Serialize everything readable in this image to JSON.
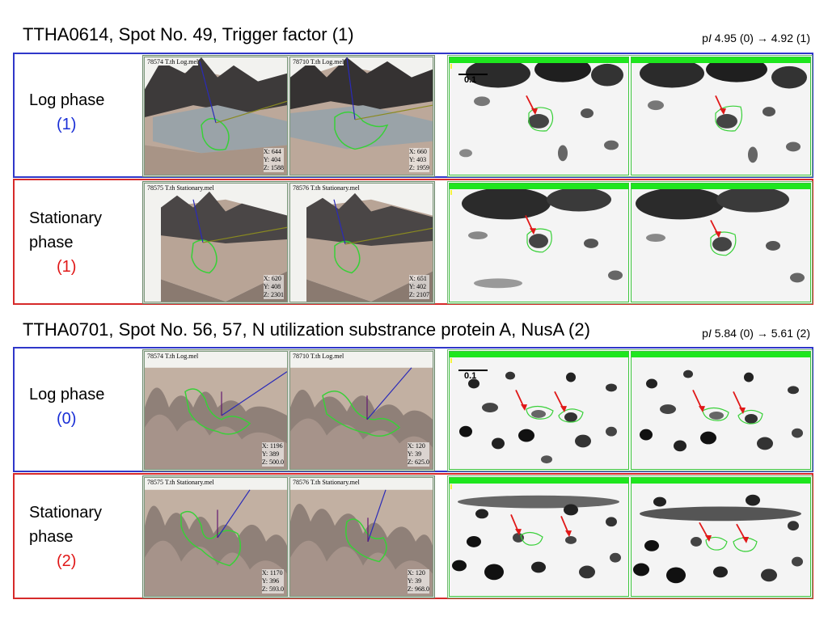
{
  "sections": [
    {
      "title": "TTHA0614, Spot No. 49, Trigger factor (1)",
      "pi_prefix": "p",
      "pi_italic": "I",
      "pi_text": " 4.95 (0) → 4.92 (1)",
      "log": {
        "label": "Log phase",
        "count": "(1)",
        "img_a": "78574 T.th Log.mel",
        "img_b": "78710 T.th Log.mel",
        "a_xyz": [
          "X: 644",
          "Y: 404",
          "Z: 1588"
        ],
        "b_xyz": [
          "X: 660",
          "Y: 403",
          "Z: 1959"
        ],
        "scale": "0.1"
      },
      "stat": {
        "label_1": "Stationary",
        "label_2": "phase",
        "count": "(1)",
        "img_a": "78575 T.th Stationary.mel",
        "img_b": "78576 T.th Stationary.mel",
        "a_xyz": [
          "X: 620",
          "Y: 408",
          "Z: 2301"
        ],
        "b_xyz": [
          "X: 651",
          "Y: 402",
          "Z: 2107"
        ]
      }
    },
    {
      "title": "TTHA0701, Spot No. 56, 57, N utilization substrance protein A, NusA (2)",
      "pi_prefix": "p",
      "pi_italic": "I",
      "pi_text": " 5.84 (0) → 5.61 (2)",
      "log": {
        "label": "Log phase",
        "count": "(0)",
        "img_a": "78574 T.th Log.mel",
        "img_b": "78710 T.th Log.mel",
        "a_xyz": [
          "X: 1196",
          "Y: 389",
          "Z: 500.0"
        ],
        "b_xyz": [
          "X: 120",
          "Y: 39",
          "Z: 625.0"
        ],
        "scale": "0.1"
      },
      "stat": {
        "label_1": "Stationary",
        "label_2": "phase",
        "count": "(2)",
        "img_a": "78575 T.th Stationary.mel",
        "img_b": "78576 T.th Stationary.mel",
        "a_xyz": [
          "X: 1170",
          "Y: 396",
          "Z: 593.0"
        ],
        "b_xyz": [
          "X: 120",
          "Y: 39",
          "Z: 968.0"
        ]
      }
    }
  ],
  "colors": {
    "log_border": "#2f37c9",
    "stat_border": "#d62a2a",
    "spot_outline": "#38d038",
    "arrow": "#e01818"
  }
}
